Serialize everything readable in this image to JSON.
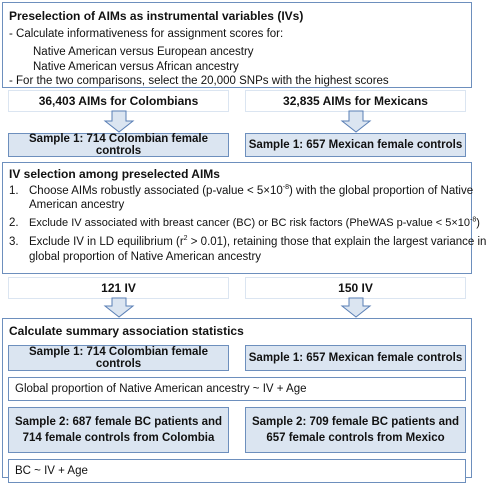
{
  "preselection": {
    "title": "Preselection of AIMs as instrumental variables (IVs)",
    "step1": "- Calculate informativeness for assignment scores for:",
    "sub1": "Native American versus European ancestry",
    "sub2": "Native American versus African ancestry",
    "step2": "- For the two comparisons, select the 20,000 SNPs with the highest scores"
  },
  "aims": {
    "colombia": "36,403 AIMs for Colombians",
    "mexico": "32,835 AIMs for Mexicans"
  },
  "sample1": {
    "colombia": "Sample 1: 714 Colombian female controls",
    "mexico": "Sample 1: 657 Mexican female controls"
  },
  "iv_selection": {
    "title": "IV selection among preselected AIMs",
    "item1_num": "1.",
    "item1_a": "Choose AIMs robustly associated (p-value < 5×10",
    "item1_sup": "-8",
    "item1_b": ") with the global proportion of Native",
    "item1_c": "American ancestry",
    "item2_num": "2.",
    "item2_a": "Exclude IV associated with breast cancer (BC) or BC risk factors (PheWAS p-value < 5×10",
    "item2_sup": "-8",
    "item2_b": ")",
    "item3_num": "3.",
    "item3_a": "Exclude IV in LD equilibrium (r",
    "item3_sup": "2",
    "item3_b": " > 0.01), retaining those that explain the largest variance in",
    "item3_c": "global proportion of Native American ancestry"
  },
  "iv_counts": {
    "colombia": "121 IV",
    "mexico": "150 IV"
  },
  "summary": {
    "title": "Calculate summary association statistics",
    "sample1_colombia": "Sample 1: 714 Colombian female controls",
    "sample1_mexico": "Sample 1: 657 Mexican female controls",
    "model1": "Global proportion of Native American ancestry ~ IV + Age",
    "sample2_colombia_l1": "Sample 2: 687 female BC patients and",
    "sample2_colombia_l2": "714 female controls from Colombia",
    "sample2_mexico_l1": "Sample 2: 709 female BC patients and",
    "sample2_mexico_l2": "657 female controls from Mexico",
    "model2": "BC ~ IV + Age"
  },
  "colors": {
    "border": "#6d8fbd",
    "fill": "#dbe5f1",
    "arrow_fill": "#dbe5f1",
    "arrow_stroke": "#5a7fb5"
  }
}
